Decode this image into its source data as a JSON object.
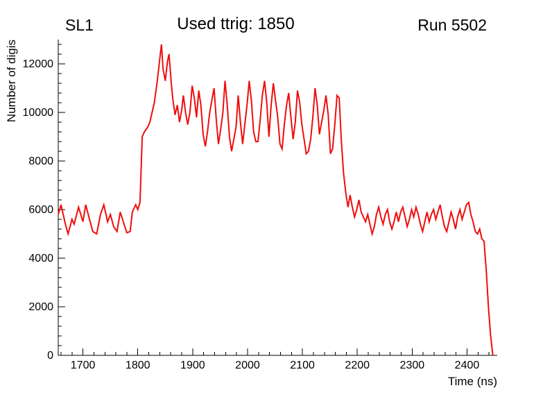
{
  "chart_data": {
    "type": "line",
    "title": "Used ttrig: 1850",
    "left_label": "SL1",
    "right_label": "Run 5502",
    "xlabel": "Time (ns)",
    "ylabel": "Number of digis",
    "xlim": [
      1655,
      2455
    ],
    "ylim": [
      0,
      13000
    ],
    "x_ticks": [
      1700,
      1800,
      1900,
      2000,
      2100,
      2200,
      2300,
      2400
    ],
    "y_ticks": [
      0,
      2000,
      4000,
      6000,
      8000,
      10000,
      12000
    ],
    "x_major_step": 100,
    "x_minor_step": 20,
    "y_major_step": 2000,
    "y_minor_step": 400,
    "grid": false,
    "legend": "none",
    "line_color": "#f00c0c",
    "axis_color": "#000000",
    "series": [
      {
        "name": "digis",
        "points": [
          [
            1655,
            5800
          ],
          [
            1660,
            6200
          ],
          [
            1668,
            5400
          ],
          [
            1673,
            5000
          ],
          [
            1680,
            5600
          ],
          [
            1684,
            5400
          ],
          [
            1692,
            6100
          ],
          [
            1700,
            5500
          ],
          [
            1705,
            6200
          ],
          [
            1712,
            5600
          ],
          [
            1718,
            5100
          ],
          [
            1725,
            5000
          ],
          [
            1732,
            5800
          ],
          [
            1738,
            6200
          ],
          [
            1745,
            5500
          ],
          [
            1750,
            5800
          ],
          [
            1756,
            5300
          ],
          [
            1762,
            5100
          ],
          [
            1768,
            5900
          ],
          [
            1775,
            5400
          ],
          [
            1780,
            5050
          ],
          [
            1786,
            5100
          ],
          [
            1790,
            5900
          ],
          [
            1796,
            6200
          ],
          [
            1800,
            6000
          ],
          [
            1804,
            6300
          ],
          [
            1808,
            9000
          ],
          [
            1812,
            9200
          ],
          [
            1818,
            9400
          ],
          [
            1822,
            9600
          ],
          [
            1826,
            10000
          ],
          [
            1830,
            10400
          ],
          [
            1835,
            11200
          ],
          [
            1840,
            12200
          ],
          [
            1843,
            12800
          ],
          [
            1846,
            11800
          ],
          [
            1850,
            11300
          ],
          [
            1854,
            12100
          ],
          [
            1857,
            12400
          ],
          [
            1861,
            11200
          ],
          [
            1864,
            10500
          ],
          [
            1868,
            9900
          ],
          [
            1872,
            10300
          ],
          [
            1876,
            9600
          ],
          [
            1880,
            10100
          ],
          [
            1883,
            10700
          ],
          [
            1887,
            10000
          ],
          [
            1891,
            9500
          ],
          [
            1895,
            10000
          ],
          [
            1899,
            11100
          ],
          [
            1903,
            10600
          ],
          [
            1907,
            9800
          ],
          [
            1911,
            10900
          ],
          [
            1915,
            10300
          ],
          [
            1919,
            9100
          ],
          [
            1923,
            8600
          ],
          [
            1927,
            9200
          ],
          [
            1931,
            10000
          ],
          [
            1935,
            10500
          ],
          [
            1939,
            11000
          ],
          [
            1943,
            9700
          ],
          [
            1947,
            8700
          ],
          [
            1951,
            9300
          ],
          [
            1955,
            10000
          ],
          [
            1959,
            11300
          ],
          [
            1963,
            10300
          ],
          [
            1967,
            9000
          ],
          [
            1971,
            8400
          ],
          [
            1975,
            8900
          ],
          [
            1979,
            9400
          ],
          [
            1983,
            10700
          ],
          [
            1987,
            9600
          ],
          [
            1991,
            8700
          ],
          [
            1995,
            9500
          ],
          [
            1999,
            10300
          ],
          [
            2003,
            11300
          ],
          [
            2007,
            10500
          ],
          [
            2011,
            9200
          ],
          [
            2015,
            8800
          ],
          [
            2019,
            8800
          ],
          [
            2023,
            9700
          ],
          [
            2027,
            10700
          ],
          [
            2031,
            11300
          ],
          [
            2035,
            10400
          ],
          [
            2039,
            9000
          ],
          [
            2043,
            10300
          ],
          [
            2047,
            11200
          ],
          [
            2051,
            10500
          ],
          [
            2055,
            9800
          ],
          [
            2059,
            8700
          ],
          [
            2063,
            8500
          ],
          [
            2067,
            9500
          ],
          [
            2071,
            10300
          ],
          [
            2075,
            10800
          ],
          [
            2079,
            9800
          ],
          [
            2083,
            8900
          ],
          [
            2087,
            9600
          ],
          [
            2091,
            10900
          ],
          [
            2095,
            10400
          ],
          [
            2099,
            9500
          ],
          [
            2103,
            8900
          ],
          [
            2107,
            8300
          ],
          [
            2111,
            8400
          ],
          [
            2115,
            8900
          ],
          [
            2119,
            9800
          ],
          [
            2123,
            11000
          ],
          [
            2127,
            10300
          ],
          [
            2131,
            9100
          ],
          [
            2135,
            9600
          ],
          [
            2139,
            10100
          ],
          [
            2143,
            10700
          ],
          [
            2147,
            9900
          ],
          [
            2151,
            8300
          ],
          [
            2155,
            8500
          ],
          [
            2159,
            9500
          ],
          [
            2163,
            10700
          ],
          [
            2167,
            10600
          ],
          [
            2171,
            8800
          ],
          [
            2175,
            7500
          ],
          [
            2179,
            6700
          ],
          [
            2183,
            6100
          ],
          [
            2187,
            6600
          ],
          [
            2191,
            6100
          ],
          [
            2195,
            5700
          ],
          [
            2199,
            6000
          ],
          [
            2203,
            6400
          ],
          [
            2207,
            5900
          ],
          [
            2211,
            5700
          ],
          [
            2215,
            5500
          ],
          [
            2219,
            5800
          ],
          [
            2223,
            5400
          ],
          [
            2227,
            5000
          ],
          [
            2231,
            5300
          ],
          [
            2235,
            5800
          ],
          [
            2239,
            6100
          ],
          [
            2243,
            5700
          ],
          [
            2247,
            5400
          ],
          [
            2251,
            5800
          ],
          [
            2255,
            6000
          ],
          [
            2259,
            5500
          ],
          [
            2263,
            5200
          ],
          [
            2267,
            5500
          ],
          [
            2271,
            5900
          ],
          [
            2275,
            5500
          ],
          [
            2279,
            5900
          ],
          [
            2283,
            6100
          ],
          [
            2287,
            5700
          ],
          [
            2291,
            5300
          ],
          [
            2295,
            5600
          ],
          [
            2299,
            6000
          ],
          [
            2303,
            5700
          ],
          [
            2307,
            6100
          ],
          [
            2311,
            5800
          ],
          [
            2315,
            5400
          ],
          [
            2319,
            5100
          ],
          [
            2323,
            5500
          ],
          [
            2327,
            5900
          ],
          [
            2331,
            5500
          ],
          [
            2335,
            5800
          ],
          [
            2339,
            6000
          ],
          [
            2343,
            5600
          ],
          [
            2347,
            5900
          ],
          [
            2351,
            6200
          ],
          [
            2355,
            5700
          ],
          [
            2359,
            5300
          ],
          [
            2363,
            5100
          ],
          [
            2367,
            5500
          ],
          [
            2371,
            5900
          ],
          [
            2375,
            5600
          ],
          [
            2379,
            5200
          ],
          [
            2383,
            5700
          ],
          [
            2387,
            6000
          ],
          [
            2391,
            5600
          ],
          [
            2395,
            5900
          ],
          [
            2399,
            6200
          ],
          [
            2403,
            6300
          ],
          [
            2407,
            5800
          ],
          [
            2411,
            5500
          ],
          [
            2415,
            5100
          ],
          [
            2419,
            5000
          ],
          [
            2423,
            5200
          ],
          [
            2427,
            4800
          ],
          [
            2431,
            4700
          ],
          [
            2435,
            3500
          ],
          [
            2439,
            2000
          ],
          [
            2443,
            800
          ],
          [
            2447,
            0
          ]
        ]
      }
    ]
  }
}
